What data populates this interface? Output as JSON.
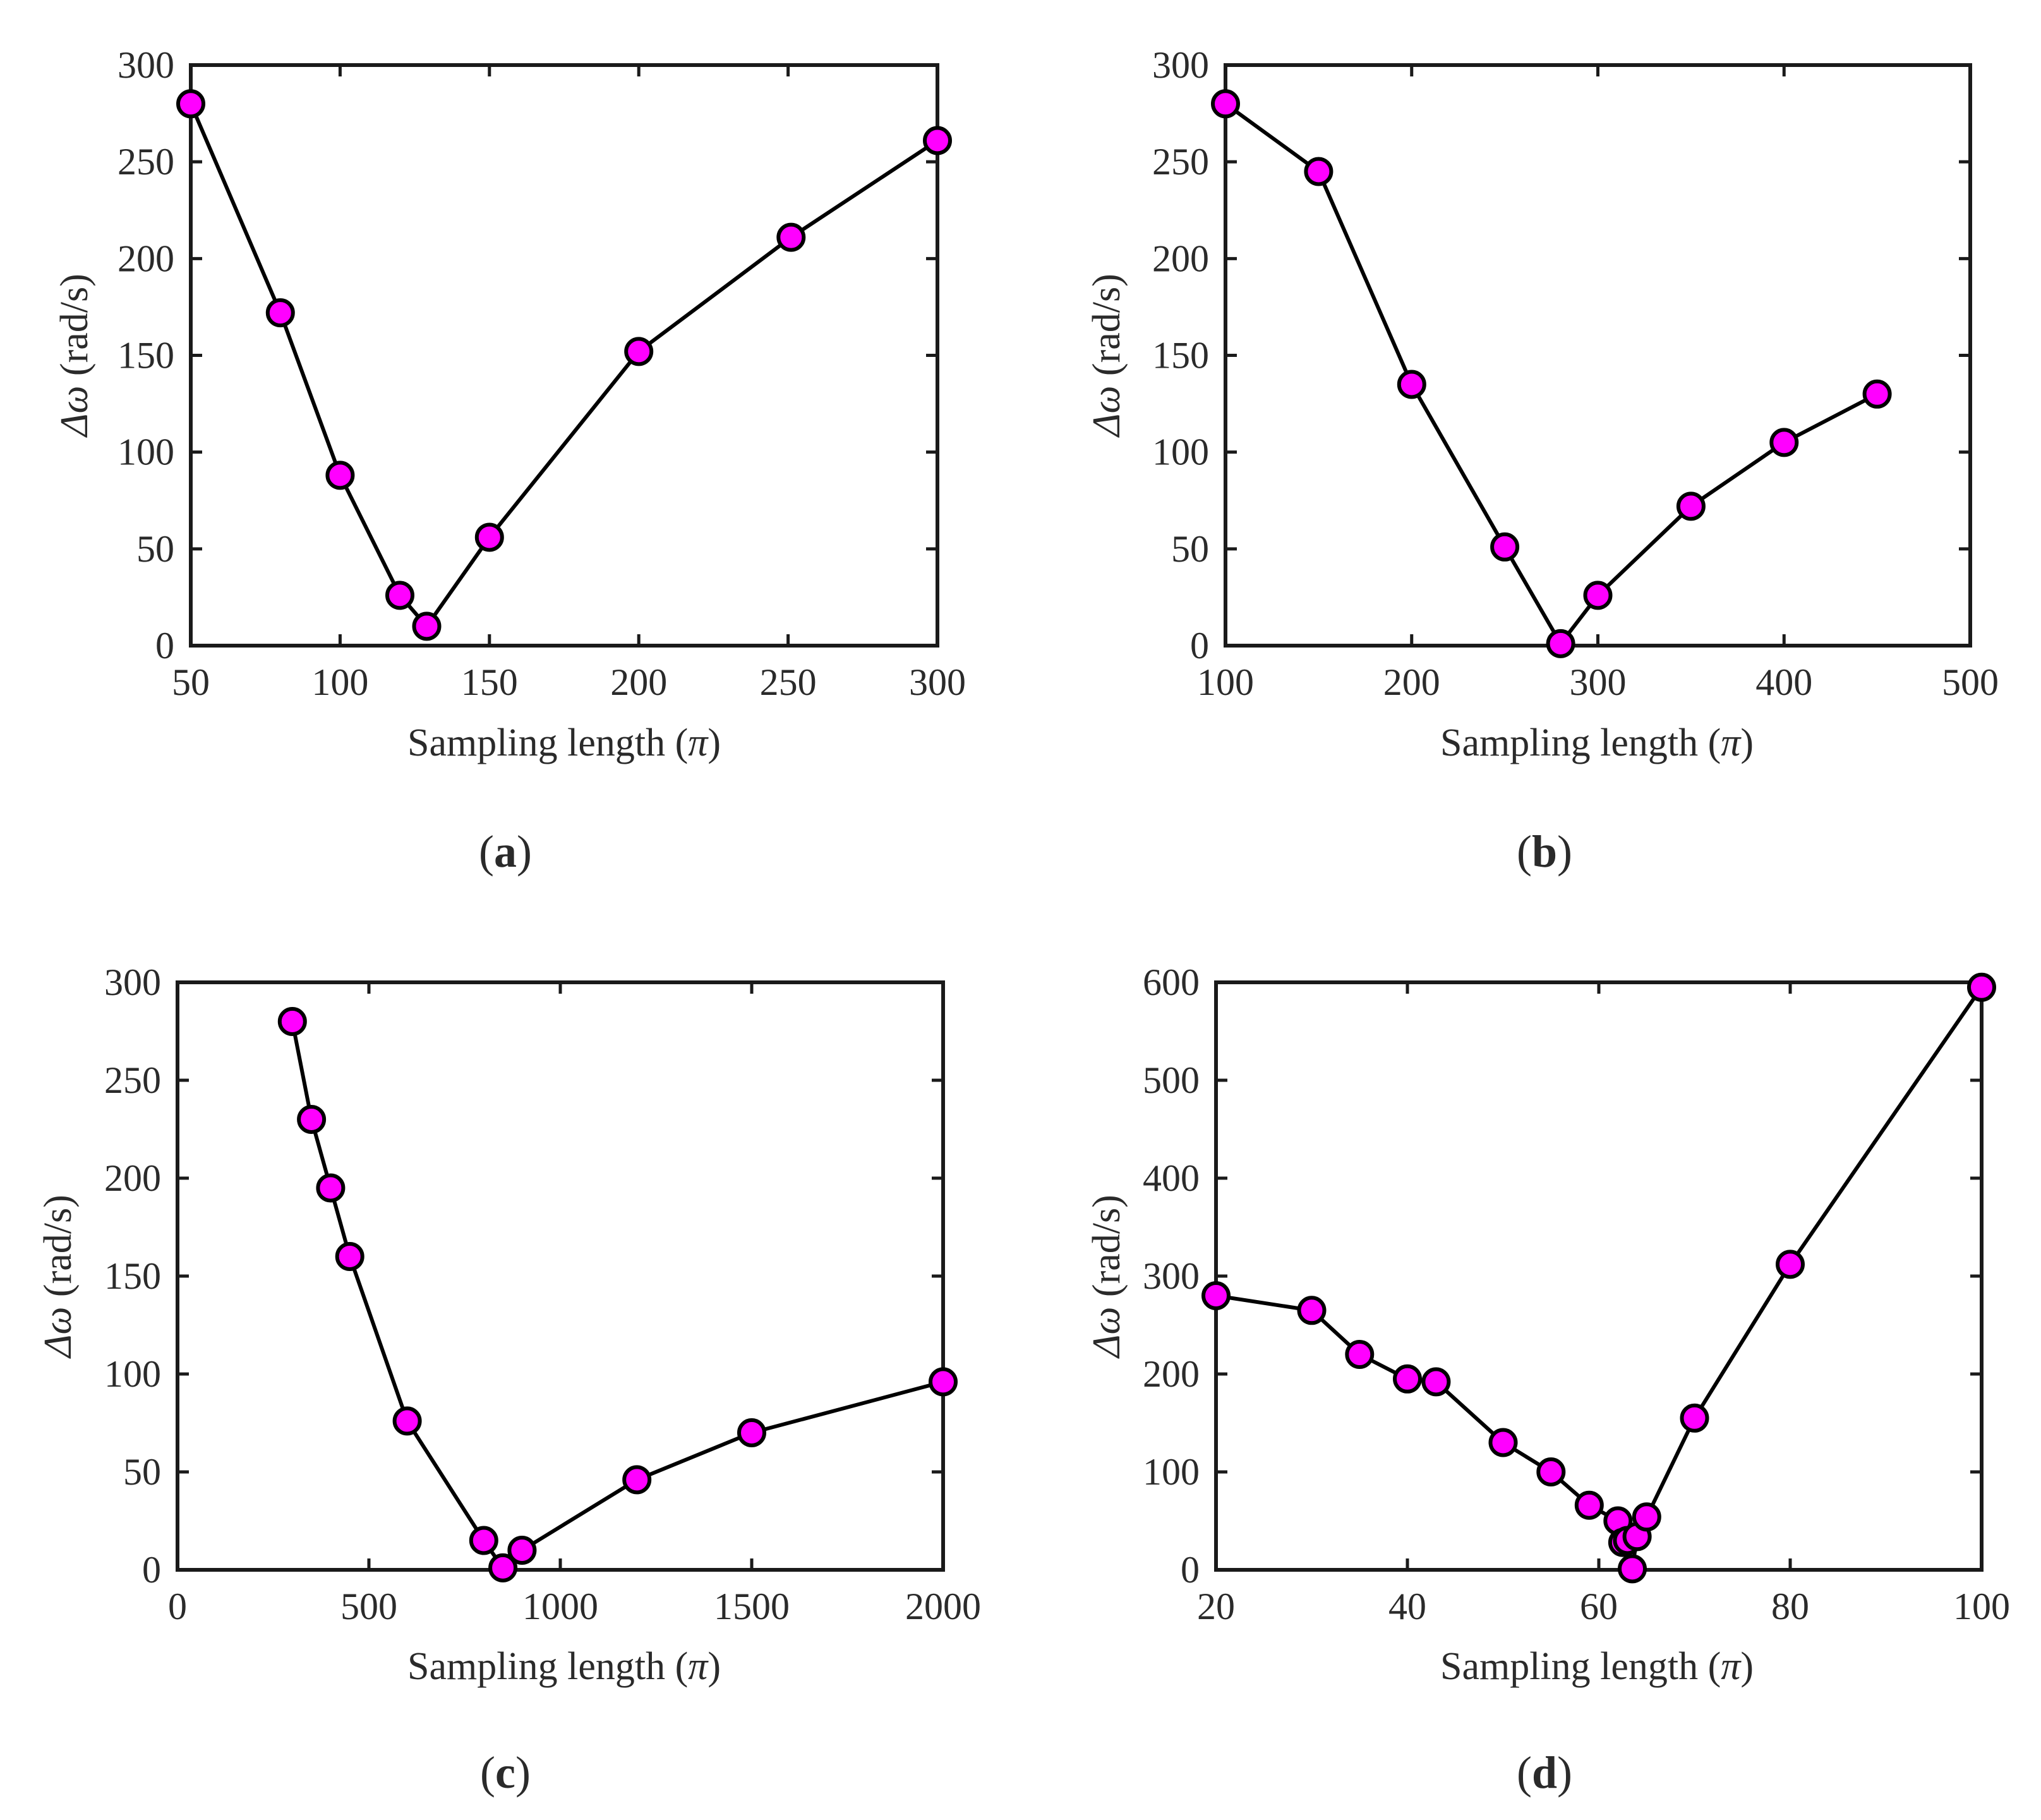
{
  "chart_data": [
    {
      "type": "line",
      "panel_label": "a",
      "xlabel": "Sampling length",
      "xlabel_symbol": "π",
      "ylabel_symbol": "Δω",
      "ylabel": "(rad/s)",
      "xlim": [
        50,
        300
      ],
      "ylim": [
        0,
        300
      ],
      "xticks": [
        50,
        100,
        150,
        200,
        250,
        300
      ],
      "yticks": [
        0,
        50,
        100,
        150,
        200,
        250,
        300
      ],
      "marker_color": "#ff00ff",
      "line_color": "#000000",
      "x": [
        50,
        80,
        100,
        120,
        129,
        150,
        200,
        251,
        300
      ],
      "y": [
        280,
        172,
        88,
        26,
        10,
        56,
        152,
        211,
        261
      ]
    },
    {
      "type": "line",
      "panel_label": "b",
      "xlabel": "Sampling length",
      "xlabel_symbol": "π",
      "ylabel_symbol": "Δω",
      "ylabel": "(rad/s)",
      "xlim": [
        100,
        500
      ],
      "ylim": [
        0,
        300
      ],
      "xticks": [
        100,
        200,
        300,
        400,
        500
      ],
      "yticks": [
        0,
        50,
        100,
        150,
        200,
        250,
        300
      ],
      "marker_color": "#ff00ff",
      "line_color": "#000000",
      "x": [
        100,
        150,
        200,
        250,
        280,
        300,
        350,
        400,
        450
      ],
      "y": [
        280,
        245,
        135,
        51,
        1,
        26,
        72,
        105,
        130
      ]
    },
    {
      "type": "line",
      "panel_label": "c",
      "xlabel": "Sampling length",
      "xlabel_symbol": "π",
      "ylabel_symbol": "Δω",
      "ylabel": "(rad/s)",
      "xlim": [
        0,
        2000
      ],
      "ylim": [
        0,
        300
      ],
      "xticks": [
        0,
        500,
        1000,
        1500,
        2000
      ],
      "yticks": [
        0,
        50,
        100,
        150,
        200,
        250,
        300
      ],
      "marker_color": "#ff00ff",
      "line_color": "#000000",
      "x": [
        300,
        350,
        400,
        450,
        600,
        800,
        850,
        900,
        1200,
        1500,
        2000
      ],
      "y": [
        280,
        230,
        195,
        160,
        76,
        15,
        1,
        10,
        46,
        70,
        96
      ]
    },
    {
      "type": "line",
      "panel_label": "d",
      "xlabel": "Sampling length",
      "xlabel_symbol": "π",
      "ylabel_symbol": "Δω",
      "ylabel": "(rad/s)",
      "xlim": [
        20,
        100
      ],
      "ylim": [
        0,
        600
      ],
      "xticks": [
        20,
        40,
        60,
        80,
        100
      ],
      "yticks": [
        0,
        100,
        200,
        300,
        400,
        500,
        600
      ],
      "marker_color": "#ff00ff",
      "line_color": "#000000",
      "x": [
        20,
        30,
        35,
        40,
        43,
        50,
        55,
        59,
        62,
        62.5,
        63,
        63.5,
        64,
        65,
        70,
        80,
        100
      ],
      "y": [
        280,
        265,
        220,
        195,
        192,
        130,
        100,
        66,
        50,
        28,
        30,
        1,
        34,
        54,
        155,
        312,
        595
      ]
    }
  ]
}
